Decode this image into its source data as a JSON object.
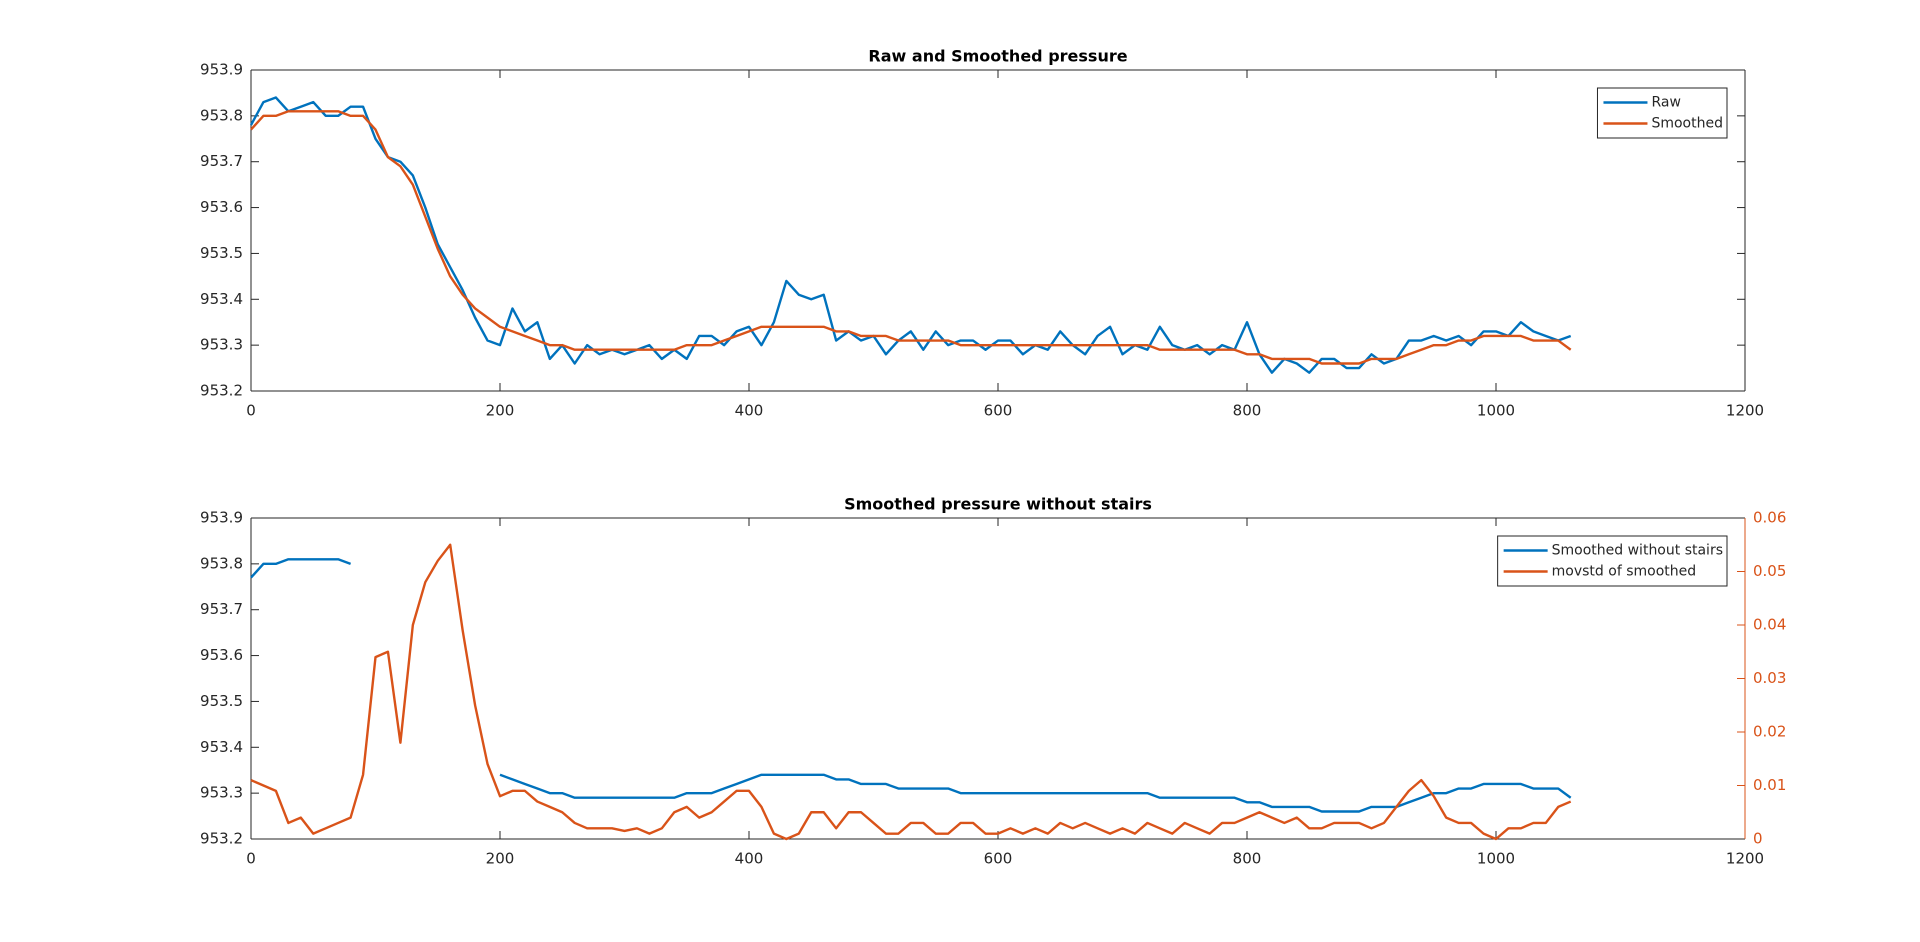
{
  "chart_data": [
    {
      "type": "line",
      "title": "Raw and Smoothed pressure",
      "x": [
        0,
        10,
        20,
        30,
        40,
        50,
        60,
        70,
        80,
        90,
        100,
        110,
        120,
        130,
        140,
        150,
        160,
        170,
        180,
        190,
        200,
        210,
        220,
        230,
        240,
        250,
        260,
        270,
        280,
        290,
        300,
        310,
        320,
        330,
        340,
        350,
        360,
        370,
        380,
        390,
        400,
        410,
        420,
        430,
        440,
        450,
        460,
        470,
        480,
        490,
        500,
        510,
        520,
        530,
        540,
        550,
        560,
        570,
        580,
        590,
        600,
        610,
        620,
        630,
        640,
        650,
        660,
        670,
        680,
        690,
        700,
        710,
        720,
        730,
        740,
        750,
        760,
        770,
        780,
        790,
        800,
        810,
        820,
        830,
        840,
        850,
        860,
        870,
        880,
        890,
        900,
        910,
        920,
        930,
        940,
        950,
        960,
        970,
        980,
        990,
        1000,
        1010,
        1020,
        1030,
        1040,
        1050,
        1060
      ],
      "series": [
        {
          "name": "Raw",
          "color": "#0072bd",
          "values": [
            953.78,
            953.83,
            953.84,
            953.81,
            953.82,
            953.83,
            953.8,
            953.8,
            953.82,
            953.82,
            953.75,
            953.71,
            953.7,
            953.67,
            953.6,
            953.52,
            953.47,
            953.42,
            953.36,
            953.31,
            953.3,
            953.38,
            953.33,
            953.35,
            953.27,
            953.3,
            953.26,
            953.3,
            953.28,
            953.29,
            953.28,
            953.29,
            953.3,
            953.27,
            953.29,
            953.27,
            953.32,
            953.32,
            953.3,
            953.33,
            953.34,
            953.3,
            953.35,
            953.44,
            953.41,
            953.4,
            953.41,
            953.31,
            953.33,
            953.31,
            953.32,
            953.28,
            953.31,
            953.33,
            953.29,
            953.33,
            953.3,
            953.31,
            953.31,
            953.29,
            953.31,
            953.31,
            953.28,
            953.3,
            953.29,
            953.33,
            953.3,
            953.28,
            953.32,
            953.34,
            953.28,
            953.3,
            953.29,
            953.34,
            953.3,
            953.29,
            953.3,
            953.28,
            953.3,
            953.29,
            953.35,
            953.28,
            953.24,
            953.27,
            953.26,
            953.24,
            953.27,
            953.27,
            953.25,
            953.25,
            953.28,
            953.26,
            953.27,
            953.31,
            953.31,
            953.32,
            953.31,
            953.32,
            953.3,
            953.33,
            953.33,
            953.32,
            953.35,
            953.33,
            953.32,
            953.31,
            953.32
          ]
        },
        {
          "name": "Smoothed",
          "color": "#d95319",
          "values": [
            953.77,
            953.8,
            953.8,
            953.81,
            953.81,
            953.81,
            953.81,
            953.81,
            953.8,
            953.8,
            953.77,
            953.71,
            953.69,
            953.65,
            953.58,
            953.51,
            953.45,
            953.41,
            953.38,
            953.36,
            953.34,
            953.33,
            953.32,
            953.31,
            953.3,
            953.3,
            953.29,
            953.29,
            953.29,
            953.29,
            953.29,
            953.29,
            953.29,
            953.29,
            953.29,
            953.3,
            953.3,
            953.3,
            953.31,
            953.32,
            953.33,
            953.34,
            953.34,
            953.34,
            953.34,
            953.34,
            953.34,
            953.33,
            953.33,
            953.32,
            953.32,
            953.32,
            953.31,
            953.31,
            953.31,
            953.31,
            953.31,
            953.3,
            953.3,
            953.3,
            953.3,
            953.3,
            953.3,
            953.3,
            953.3,
            953.3,
            953.3,
            953.3,
            953.3,
            953.3,
            953.3,
            953.3,
            953.3,
            953.29,
            953.29,
            953.29,
            953.29,
            953.29,
            953.29,
            953.29,
            953.28,
            953.28,
            953.27,
            953.27,
            953.27,
            953.27,
            953.26,
            953.26,
            953.26,
            953.26,
            953.27,
            953.27,
            953.27,
            953.28,
            953.29,
            953.3,
            953.3,
            953.31,
            953.31,
            953.32,
            953.32,
            953.32,
            953.32,
            953.31,
            953.31,
            953.31,
            953.29
          ]
        }
      ],
      "xlim": [
        0,
        1200
      ],
      "xticks": [
        0,
        200,
        400,
        600,
        800,
        1000,
        1200
      ],
      "ylim": [
        953.2,
        953.9
      ],
      "yticks": [
        953.2,
        953.3,
        953.4,
        953.5,
        953.6,
        953.7,
        953.8,
        953.9
      ],
      "legend": "northeast",
      "grid": false
    },
    {
      "type": "line",
      "title": "Smoothed pressure without stairs",
      "x": [
        0,
        10,
        20,
        30,
        40,
        50,
        60,
        70,
        80,
        90,
        100,
        110,
        120,
        130,
        140,
        150,
        160,
        170,
        180,
        190,
        200,
        210,
        220,
        230,
        240,
        250,
        260,
        270,
        280,
        290,
        300,
        310,
        320,
        330,
        340,
        350,
        360,
        370,
        380,
        390,
        400,
        410,
        420,
        430,
        440,
        450,
        460,
        470,
        480,
        490,
        500,
        510,
        520,
        530,
        540,
        550,
        560,
        570,
        580,
        590,
        600,
        610,
        620,
        630,
        640,
        650,
        660,
        670,
        680,
        690,
        700,
        710,
        720,
        730,
        740,
        750,
        760,
        770,
        780,
        790,
        800,
        810,
        820,
        830,
        840,
        850,
        860,
        870,
        880,
        890,
        900,
        910,
        920,
        930,
        940,
        950,
        960,
        970,
        980,
        990,
        1000,
        1010,
        1020,
        1030,
        1040,
        1050,
        1060
      ],
      "series": [
        {
          "name": "Smoothed without stairs",
          "color": "#0072bd",
          "values": [
            953.77,
            953.8,
            953.8,
            953.81,
            953.81,
            953.81,
            953.81,
            953.81,
            953.8,
            null,
            null,
            null,
            null,
            null,
            null,
            null,
            null,
            null,
            null,
            null,
            953.34,
            953.33,
            953.32,
            953.31,
            953.3,
            953.3,
            953.29,
            953.29,
            953.29,
            953.29,
            953.29,
            953.29,
            953.29,
            953.29,
            953.29,
            953.3,
            953.3,
            953.3,
            953.31,
            953.32,
            953.33,
            953.34,
            953.34,
            953.34,
            953.34,
            953.34,
            953.34,
            953.33,
            953.33,
            953.32,
            953.32,
            953.32,
            953.31,
            953.31,
            953.31,
            953.31,
            953.31,
            953.3,
            953.3,
            953.3,
            953.3,
            953.3,
            953.3,
            953.3,
            953.3,
            953.3,
            953.3,
            953.3,
            953.3,
            953.3,
            953.3,
            953.3,
            953.3,
            953.29,
            953.29,
            953.29,
            953.29,
            953.29,
            953.29,
            953.29,
            953.28,
            953.28,
            953.27,
            953.27,
            953.27,
            953.27,
            953.26,
            953.26,
            953.26,
            953.26,
            953.27,
            953.27,
            953.27,
            953.28,
            953.29,
            953.3,
            953.3,
            953.31,
            953.31,
            953.32,
            953.32,
            953.32,
            953.32,
            953.31,
            953.31,
            953.31,
            953.29
          ]
        },
        {
          "name": "movstd of smoothed",
          "color": "#d95319",
          "axis": "y2",
          "values": [
            0.011,
            0.01,
            0.009,
            0.003,
            0.004,
            0.001,
            0.002,
            0.003,
            0.004,
            0.012,
            0.034,
            0.035,
            0.018,
            0.04,
            0.048,
            0.052,
            0.055,
            0.039,
            0.025,
            0.014,
            0.008,
            0.009,
            0.009,
            0.007,
            0.006,
            0.005,
            0.003,
            0.002,
            0.002,
            0.002,
            0.0015,
            0.002,
            0.001,
            0.002,
            0.005,
            0.006,
            0.004,
            0.005,
            0.007,
            0.009,
            0.009,
            0.006,
            0.001,
            0.0,
            0.001,
            0.005,
            0.005,
            0.002,
            0.005,
            0.005,
            0.003,
            0.001,
            0.001,
            0.003,
            0.003,
            0.001,
            0.001,
            0.003,
            0.003,
            0.001,
            0.001,
            0.002,
            0.001,
            0.002,
            0.001,
            0.003,
            0.002,
            0.003,
            0.002,
            0.001,
            0.002,
            0.001,
            0.003,
            0.002,
            0.001,
            0.003,
            0.002,
            0.001,
            0.003,
            0.003,
            0.004,
            0.005,
            0.004,
            0.003,
            0.004,
            0.002,
            0.002,
            0.003,
            0.003,
            0.003,
            0.002,
            0.003,
            0.006,
            0.009,
            0.011,
            0.008,
            0.004,
            0.003,
            0.003,
            0.001,
            0.0,
            0.002,
            0.002,
            0.003,
            0.003,
            0.006,
            0.007
          ]
        }
      ],
      "xlim": [
        0,
        1200
      ],
      "xticks": [
        0,
        200,
        400,
        600,
        800,
        1000,
        1200
      ],
      "ylim": [
        953.2,
        953.9
      ],
      "yticks": [
        953.2,
        953.3,
        953.4,
        953.5,
        953.6,
        953.7,
        953.8,
        953.9
      ],
      "y2lim": [
        0,
        0.06
      ],
      "y2ticks": [
        0,
        0.01,
        0.02,
        0.03,
        0.04,
        0.05,
        0.06
      ],
      "legend": "northeast",
      "grid": false
    }
  ]
}
